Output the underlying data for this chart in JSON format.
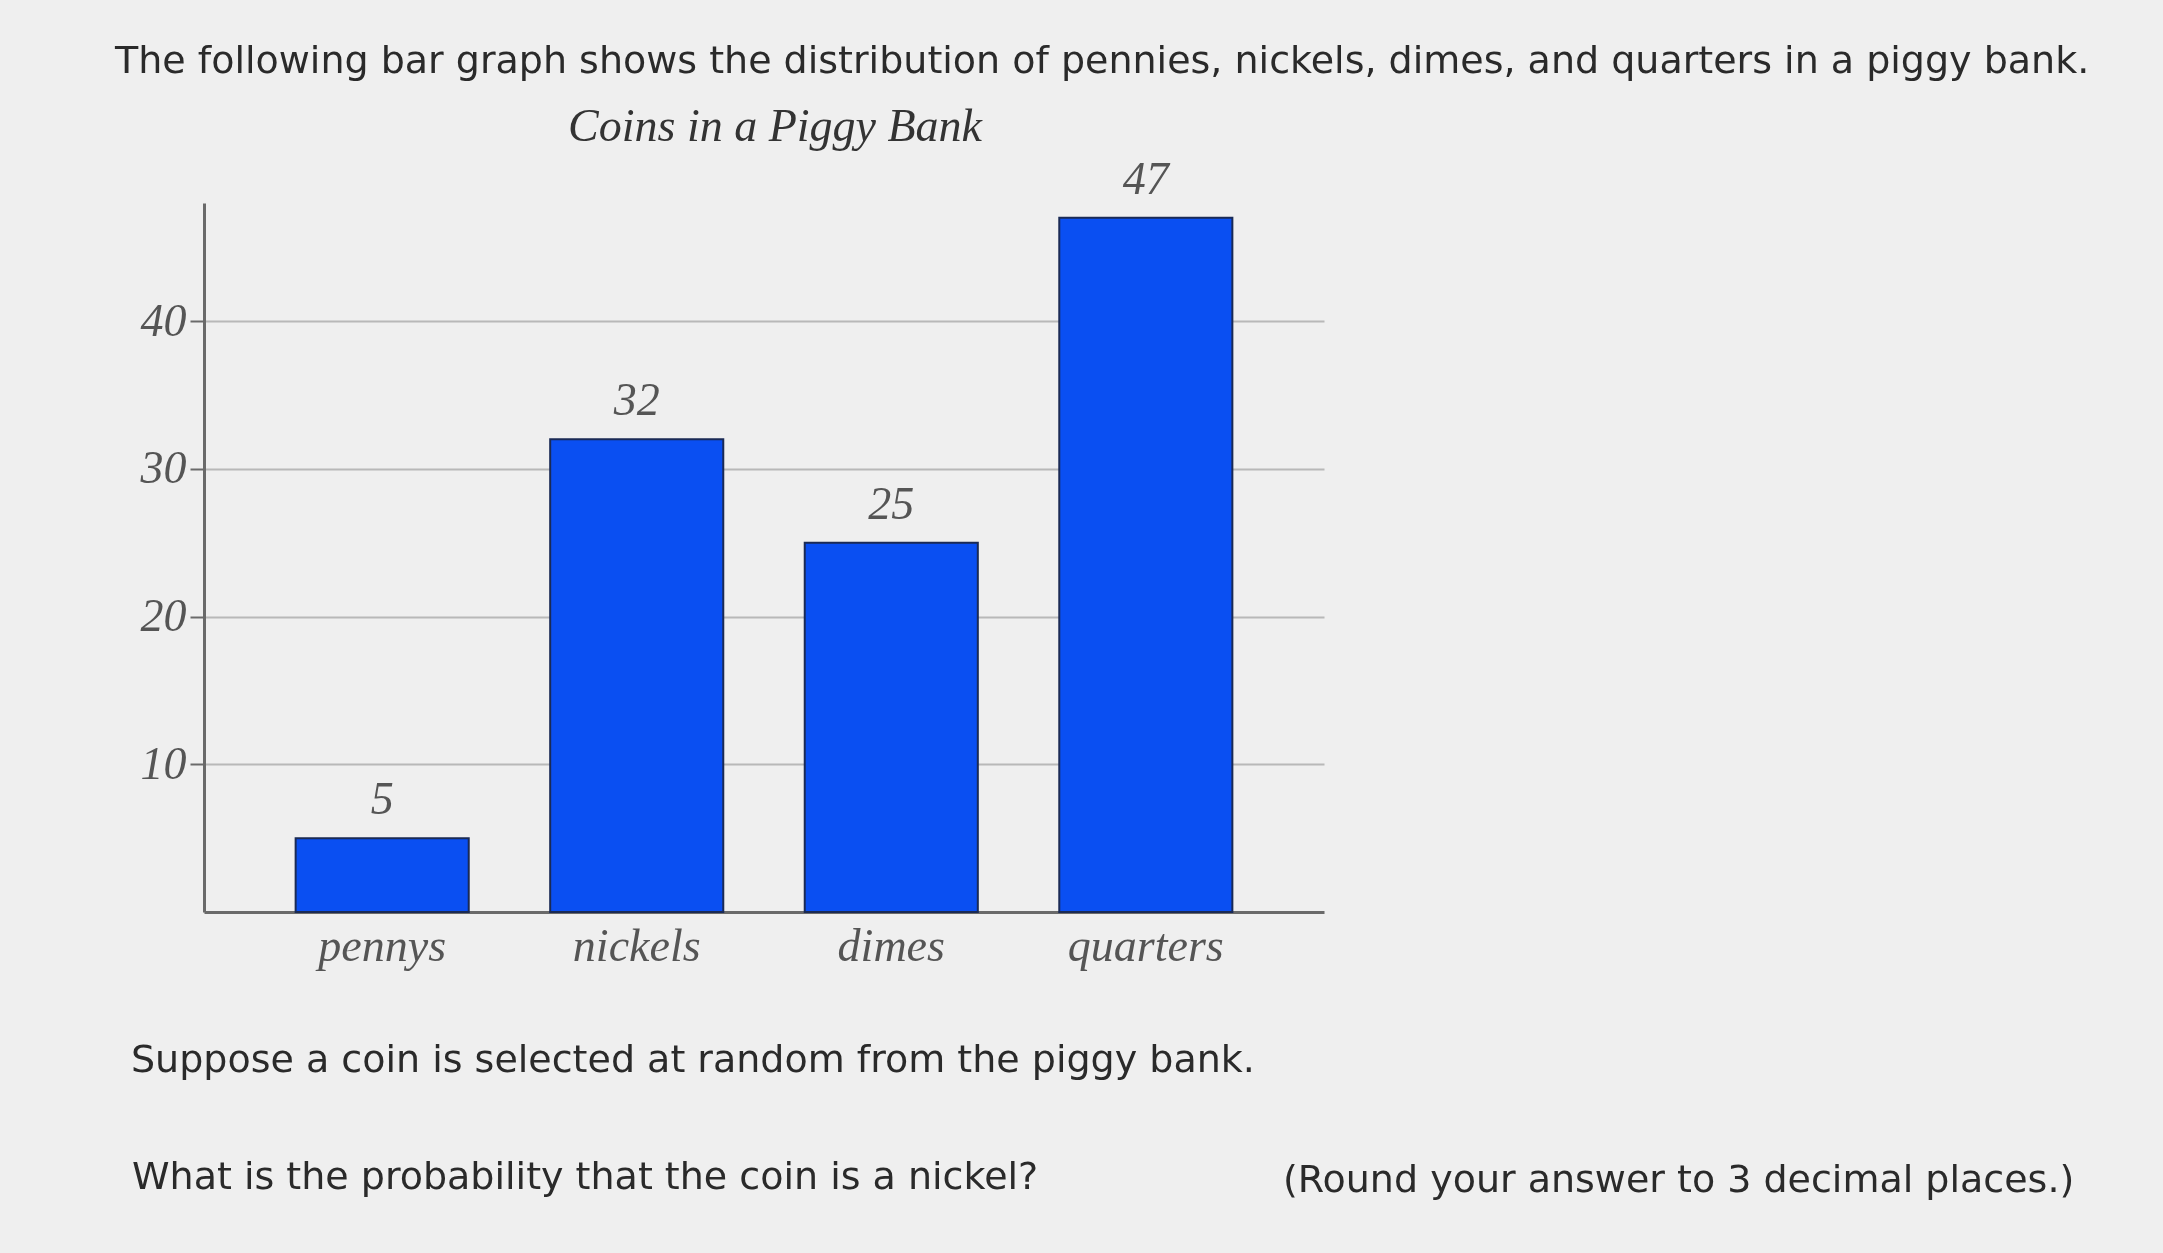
{
  "chart_data": {
    "type": "bar",
    "title": "Coins in a Piggy Bank",
    "categories": [
      "pennys",
      "nickels",
      "dimes",
      "quarters"
    ],
    "values": [
      5,
      32,
      25,
      47
    ],
    "color": "#0a4ff2",
    "ylim": [
      0,
      48
    ],
    "yticks": [
      10,
      20,
      30,
      40
    ],
    "grid": "y",
    "data_labels": true,
    "annotations": [
      "The following bar graph shows the distribution of pennies, nickels, dimes, and quarters in a piggy bank.",
      "Suppose a coin is selected at random from the piggy bank.",
      "What is the probability that the coin is a nickel?",
      "(Round your answer to 3 decimal places.)"
    ]
  }
}
